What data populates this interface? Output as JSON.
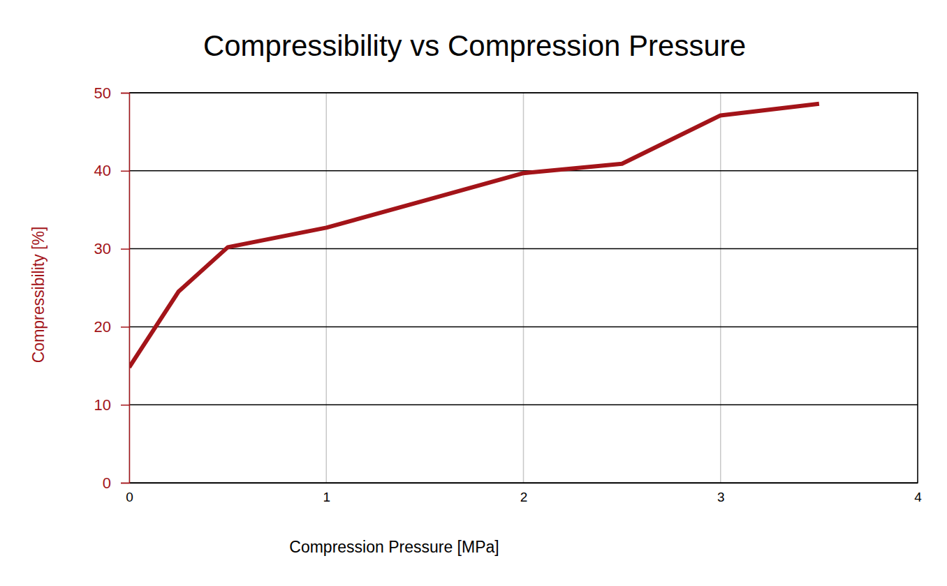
{
  "chart_data": {
    "type": "line",
    "title": "Compressibility vs Compression Pressure",
    "x_label": "Compression Pressure [MPa]",
    "y_label": "Compressibility [%]",
    "x": [
      0,
      0.25,
      0.5,
      1,
      1.5,
      2,
      2.5,
      3,
      3.5
    ],
    "values": [
      14.8,
      24.5,
      30.2,
      32.7,
      36.2,
      39.7,
      40.9,
      47.1,
      48.6
    ],
    "color": "#a31419",
    "xlim": [
      0,
      4
    ],
    "xticks": [
      0,
      1,
      2,
      3,
      4
    ],
    "ylim": [
      0,
      50
    ],
    "yticks": [
      0,
      10,
      20,
      30,
      40,
      50
    ],
    "grid": true
  }
}
